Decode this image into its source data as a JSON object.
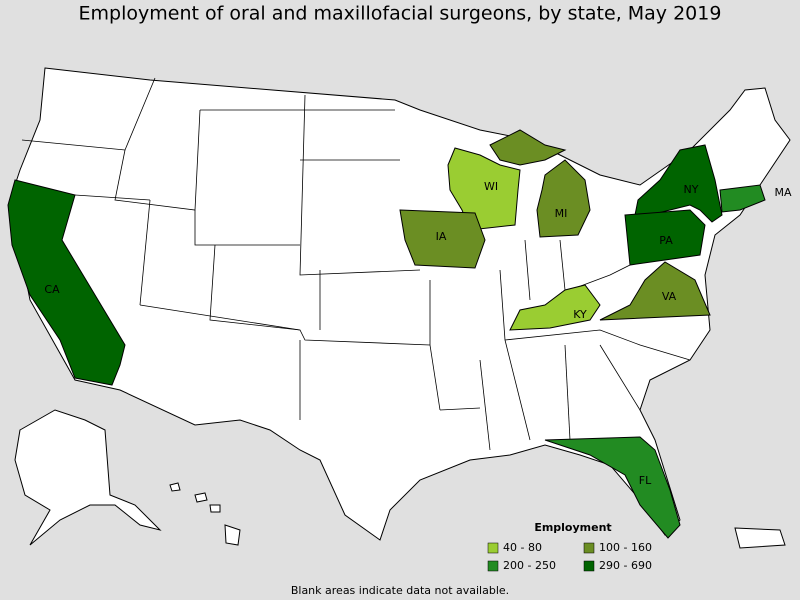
{
  "title": "Employment of oral and maxillofacial surgeons, by state, May 2019",
  "legend": {
    "title": "Employment",
    "items": [
      {
        "label": "40 - 80",
        "color": "#9acd32"
      },
      {
        "label": "100 - 160",
        "color": "#6b8e23"
      },
      {
        "label": "200 - 250",
        "color": "#228b22"
      },
      {
        "label": "290 - 690",
        "color": "#006400"
      }
    ]
  },
  "states": [
    {
      "label": "CA",
      "color": "#006400"
    },
    {
      "label": "WI",
      "color": "#9acd32"
    },
    {
      "label": "MI",
      "color": "#6b8e23"
    },
    {
      "label": "IA",
      "color": "#6b8e23"
    },
    {
      "label": "NY",
      "color": "#006400"
    },
    {
      "label": "PA",
      "color": "#006400"
    },
    {
      "label": "MA",
      "color": "#228b22"
    },
    {
      "label": "KY",
      "color": "#9acd32"
    },
    {
      "label": "VA",
      "color": "#6b8e23"
    },
    {
      "label": "FL",
      "color": "#228b22"
    }
  ],
  "footnote": "Blank areas indicate data not available."
}
